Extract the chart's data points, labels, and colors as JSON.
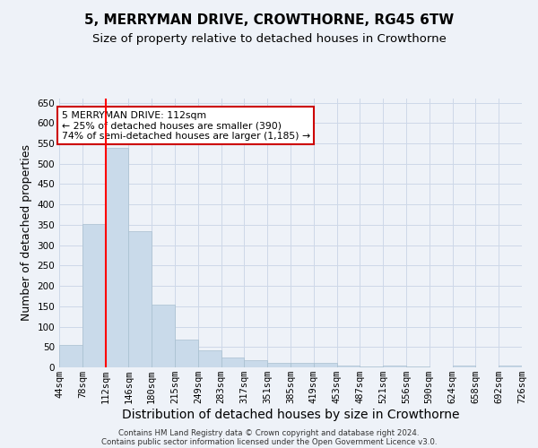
{
  "title": "5, MERRYMAN DRIVE, CROWTHORNE, RG45 6TW",
  "subtitle": "Size of property relative to detached houses in Crowthorne",
  "xlabel": "Distribution of detached houses by size in Crowthorne",
  "ylabel": "Number of detached properties",
  "bin_labels": [
    "44sqm",
    "78sqm",
    "112sqm",
    "146sqm",
    "180sqm",
    "215sqm",
    "249sqm",
    "283sqm",
    "317sqm",
    "351sqm",
    "385sqm",
    "419sqm",
    "453sqm",
    "487sqm",
    "521sqm",
    "556sqm",
    "590sqm",
    "624sqm",
    "658sqm",
    "692sqm",
    "726sqm"
  ],
  "bar_heights": [
    55,
    353,
    540,
    335,
    155,
    68,
    42,
    25,
    18,
    10,
    10,
    10,
    5,
    3,
    5,
    2,
    1,
    4,
    1,
    4
  ],
  "bar_color": "#c9daea",
  "bar_edge_color": "#a8bfcf",
  "red_line_x": 2.0,
  "ylim": [
    0,
    660
  ],
  "yticks": [
    0,
    50,
    100,
    150,
    200,
    250,
    300,
    350,
    400,
    450,
    500,
    550,
    600,
    650
  ],
  "annotation_text": "5 MERRYMAN DRIVE: 112sqm\n← 25% of detached houses are smaller (390)\n74% of semi-detached houses are larger (1,185) →",
  "annotation_box_color": "#ffffff",
  "annotation_box_edge": "#cc0000",
  "grid_color": "#cdd8e8",
  "background_color": "#eef2f8",
  "footer_line1": "Contains HM Land Registry data © Crown copyright and database right 2024.",
  "footer_line2": "Contains public sector information licensed under the Open Government Licence v3.0.",
  "title_fontsize": 11,
  "subtitle_fontsize": 9.5,
  "axis_label_fontsize": 9,
  "tick_fontsize": 7.5
}
